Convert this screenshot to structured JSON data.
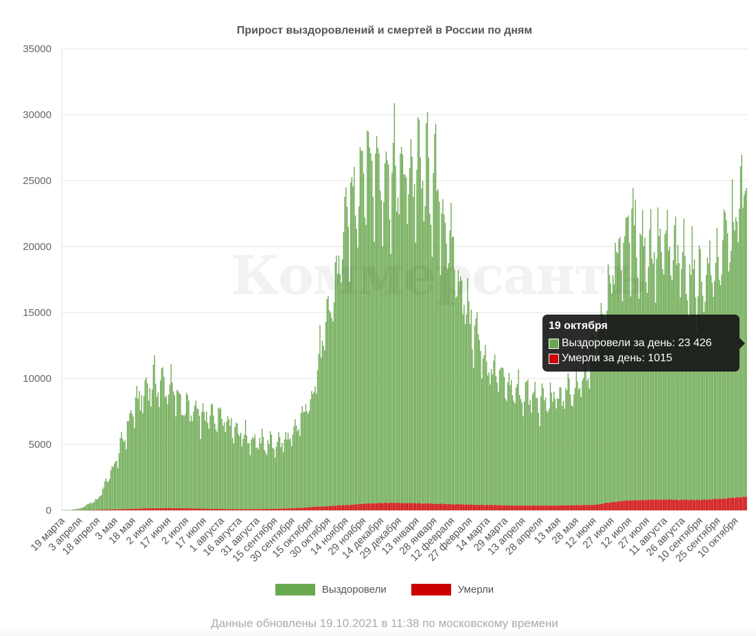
{
  "chart_data": {
    "type": "bar",
    "title": "Прирост выздоровлений и смертей в России по дням",
    "xlabel": "",
    "ylabel": "",
    "ylim": [
      0,
      35000
    ],
    "y_ticks": [
      "0",
      "5000",
      "10000",
      "15000",
      "20000",
      "25000",
      "30000",
      "35000"
    ],
    "grid": true,
    "stacked": true,
    "legend_position": "bottom",
    "x_range": [
      "2020-03-19",
      "2021-10-19"
    ],
    "x_ticks": [
      "19 марта",
      "3 апреля",
      "18 апреля",
      "3 мая",
      "18 мая",
      "2 июня",
      "17 июня",
      "2 июля",
      "17 июля",
      "1 августа",
      "16 августа",
      "31 августа",
      "15 сентября",
      "30 сентября",
      "15 октября",
      "30 октября",
      "14 ноября",
      "29 ноября",
      "14 декабря",
      "29 декабря",
      "13 января",
      "28 января",
      "12 февраля",
      "27 февраля",
      "14 марта",
      "29 марта",
      "13 апреля",
      "28 апреля",
      "13 мая",
      "28 мая",
      "12 июня",
      "27 июня",
      "12 июля",
      "27 июля",
      "11 августа",
      "26 августа",
      "10 сентября",
      "25 сентября",
      "10 октября"
    ],
    "series": [
      {
        "name": "Выздоровели",
        "color": "#6aa84f",
        "description": "daily recoveries, stacked on deaths",
        "weekly_keypoints": [
          [
            "2020-03-19",
            10
          ],
          [
            "2020-04-03",
            120
          ],
          [
            "2020-04-18",
            800
          ],
          [
            "2020-05-03",
            3500
          ],
          [
            "2020-05-18",
            7500
          ],
          [
            "2020-06-02",
            9500
          ],
          [
            "2020-06-17",
            9200
          ],
          [
            "2020-07-02",
            7500
          ],
          [
            "2020-07-17",
            6800
          ],
          [
            "2020-08-01",
            7200
          ],
          [
            "2020-08-16",
            5800
          ],
          [
            "2020-08-31",
            5000
          ],
          [
            "2020-09-15",
            4900
          ],
          [
            "2020-09-30",
            5300
          ],
          [
            "2020-10-15",
            8200
          ],
          [
            "2020-10-30",
            14000
          ],
          [
            "2020-11-14",
            21000
          ],
          [
            "2020-11-29",
            26000
          ],
          [
            "2020-12-14",
            25000
          ],
          [
            "2020-12-29",
            24500
          ],
          [
            "2021-01-13",
            25000
          ],
          [
            "2021-01-28",
            24000
          ],
          [
            "2021-02-12",
            19000
          ],
          [
            "2021-02-27",
            14000
          ],
          [
            "2021-03-14",
            10500
          ],
          [
            "2021-03-29",
            9000
          ],
          [
            "2021-04-13",
            8500
          ],
          [
            "2021-04-28",
            7800
          ],
          [
            "2021-05-13",
            8200
          ],
          [
            "2021-05-28",
            8500
          ],
          [
            "2021-06-12",
            11500
          ],
          [
            "2021-06-27",
            17500
          ],
          [
            "2021-07-12",
            20500
          ],
          [
            "2021-07-27",
            19000
          ],
          [
            "2021-08-11",
            18800
          ],
          [
            "2021-08-26",
            17800
          ],
          [
            "2021-09-10",
            16500
          ],
          [
            "2021-09-25",
            17800
          ],
          [
            "2021-10-10",
            21000
          ],
          [
            "2021-10-19",
            23426
          ]
        ]
      },
      {
        "name": "Умерли",
        "color": "#cc0000",
        "description": "daily deaths",
        "weekly_keypoints": [
          [
            "2020-03-19",
            0
          ],
          [
            "2020-04-03",
            5
          ],
          [
            "2020-04-18",
            40
          ],
          [
            "2020-05-03",
            70
          ],
          [
            "2020-05-18",
            110
          ],
          [
            "2020-06-02",
            160
          ],
          [
            "2020-06-17",
            170
          ],
          [
            "2020-07-02",
            150
          ],
          [
            "2020-07-17",
            120
          ],
          [
            "2020-08-01",
            100
          ],
          [
            "2020-08-16",
            90
          ],
          [
            "2020-08-31",
            90
          ],
          [
            "2020-09-15",
            110
          ],
          [
            "2020-09-30",
            150
          ],
          [
            "2020-10-15",
            240
          ],
          [
            "2020-10-30",
            310
          ],
          [
            "2020-11-14",
            400
          ],
          [
            "2020-11-29",
            500
          ],
          [
            "2020-12-14",
            560
          ],
          [
            "2020-12-29",
            560
          ],
          [
            "2021-01-13",
            530
          ],
          [
            "2021-01-28",
            500
          ],
          [
            "2021-02-12",
            460
          ],
          [
            "2021-02-27",
            430
          ],
          [
            "2021-03-14",
            400
          ],
          [
            "2021-03-29",
            370
          ],
          [
            "2021-04-13",
            360
          ],
          [
            "2021-04-28",
            360
          ],
          [
            "2021-05-13",
            360
          ],
          [
            "2021-05-28",
            380
          ],
          [
            "2021-06-12",
            420
          ],
          [
            "2021-06-27",
            610
          ],
          [
            "2021-07-12",
            760
          ],
          [
            "2021-07-27",
            790
          ],
          [
            "2021-08-11",
            800
          ],
          [
            "2021-08-26",
            800
          ],
          [
            "2021-09-10",
            790
          ],
          [
            "2021-09-25",
            850
          ],
          [
            "2021-10-10",
            960
          ],
          [
            "2021-10-19",
            1015
          ]
        ]
      }
    ]
  },
  "legend": {
    "items": [
      {
        "label": "Выздоровели",
        "color": "#6aa84f"
      },
      {
        "label": "Умерли",
        "color": "#cc0000"
      }
    ]
  },
  "tooltip": {
    "title": "19 октября",
    "recovered_label": "Выздоровели за день: 23 426",
    "died_label": "Умерли за день: 1015"
  },
  "watermark": "Коммерсантъ",
  "footer": {
    "text": "Данные обновлены 19.10.2021 в 11:38 по московскому времени"
  }
}
